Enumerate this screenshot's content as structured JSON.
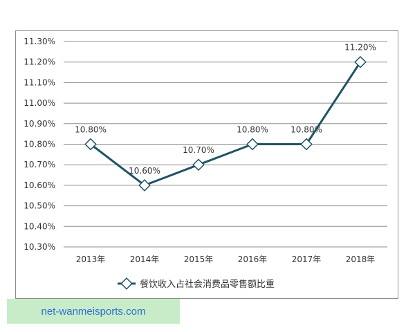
{
  "chart_data": {
    "type": "line",
    "title": "",
    "xlabel": "",
    "ylabel": "",
    "categories": [
      "2013年",
      "2014年",
      "2015年",
      "2016年",
      "2017年",
      "2018年"
    ],
    "series": [
      {
        "name": "餐饮收入占社会消费品零售额比重",
        "values": [
          10.8,
          10.6,
          10.7,
          10.8,
          10.8,
          11.2
        ],
        "labels": [
          "10.80%",
          "10.60%",
          "10.70%",
          "10.80%",
          "10.80%",
          "11.20%"
        ]
      }
    ],
    "ylim": [
      10.3,
      11.3
    ],
    "yticks": [
      10.3,
      10.4,
      10.5,
      10.6,
      10.7,
      10.8,
      10.9,
      11.0,
      11.1,
      11.2,
      11.3
    ],
    "ytick_labels": [
      "10.30%",
      "10.40%",
      "10.50%",
      "10.60%",
      "10.70%",
      "10.80%",
      "10.90%",
      "11.00%",
      "11.10%",
      "11.20%",
      "11.30%"
    ],
    "grid": true,
    "legend": "bottom",
    "colors": {
      "line": "#1f5464",
      "grid": "#8f8f8f",
      "marker_fill": "#ffffff"
    }
  },
  "watermark": {
    "text": "net-wanmeisports.com",
    "background": "#c8ecc8",
    "color": "#2a6fd6"
  }
}
